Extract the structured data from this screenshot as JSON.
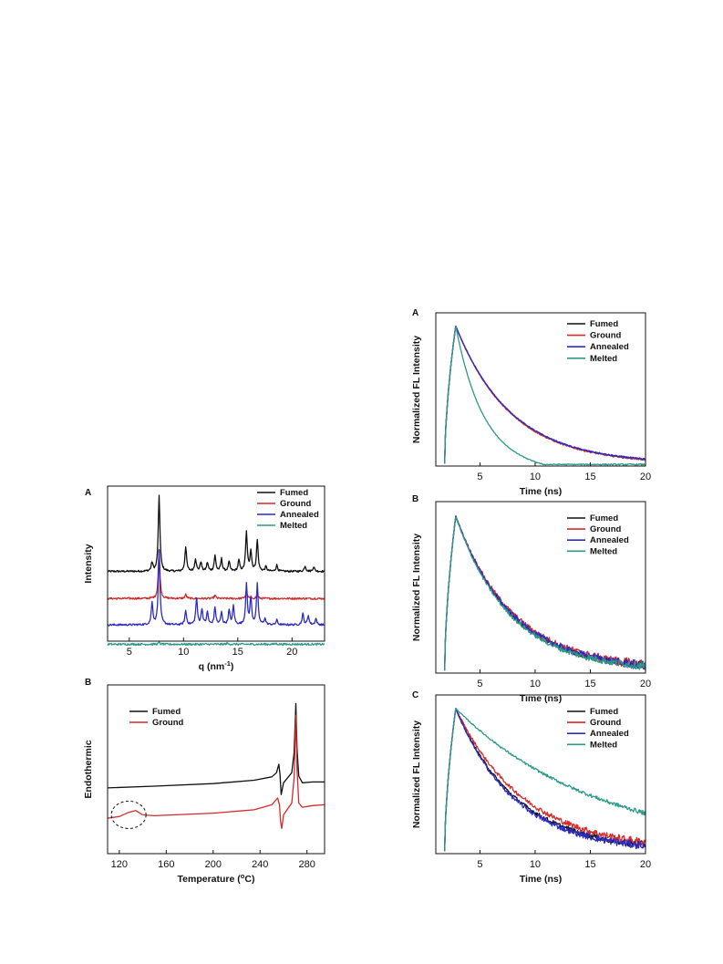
{
  "colors": {
    "Fumed": "#111111",
    "Ground": "#d42a2a",
    "Annealed": "#2b2bc8",
    "Melted": "#2a9a8a"
  },
  "chart_data": [
    {
      "id": "pxrd",
      "panel": "A",
      "type": "line",
      "xlabel": "q (nm",
      "xlabel_sup": "-1",
      "xlabel_end": ")",
      "ylabel": "Intensity",
      "xlim": [
        3,
        23
      ],
      "ylim": [
        0,
        10
      ],
      "xticks": [
        5,
        10,
        15,
        20
      ],
      "legend": "top-right",
      "series": [
        {
          "name": "Fumed",
          "baseline": 4.5,
          "peaks": [
            [
              7.1,
              0.55
            ],
            [
              7.75,
              4.9
            ],
            [
              10.2,
              1.6
            ],
            [
              11.1,
              0.8
            ],
            [
              11.6,
              0.6
            ],
            [
              12.2,
              0.55
            ],
            [
              12.9,
              1.0
            ],
            [
              13.5,
              0.8
            ],
            [
              14.2,
              0.6
            ],
            [
              15.1,
              0.7
            ],
            [
              15.8,
              2.5
            ],
            [
              16.2,
              1.3
            ],
            [
              16.8,
              2.0
            ],
            [
              17.6,
              0.3
            ],
            [
              18.6,
              0.4
            ],
            [
              21.2,
              0.35
            ],
            [
              22.0,
              0.3
            ]
          ]
        },
        {
          "name": "Ground",
          "baseline": 2.75,
          "peaks": [
            [
              7.75,
              3.1
            ],
            [
              10.2,
              0.25
            ],
            [
              12.9,
              0.2
            ],
            [
              15.8,
              0.45
            ],
            [
              16.8,
              0.25
            ]
          ]
        },
        {
          "name": "Annealed",
          "baseline": 1.05,
          "peaks": [
            [
              7.1,
              1.4
            ],
            [
              7.75,
              4.8
            ],
            [
              10.2,
              0.9
            ],
            [
              11.2,
              1.7
            ],
            [
              11.7,
              1.0
            ],
            [
              12.2,
              0.8
            ],
            [
              12.9,
              1.1
            ],
            [
              13.5,
              0.8
            ],
            [
              14.2,
              0.9
            ],
            [
              14.6,
              1.2
            ],
            [
              15.8,
              2.6
            ],
            [
              16.2,
              1.7
            ],
            [
              16.8,
              2.6
            ],
            [
              17.5,
              0.4
            ],
            [
              18.6,
              0.3
            ],
            [
              21.0,
              0.7
            ],
            [
              21.5,
              0.6
            ],
            [
              22.2,
              0.4
            ]
          ]
        },
        {
          "name": "Melted",
          "baseline": -0.2,
          "peaks": [
            [
              7.75,
              0.1
            ],
            [
              14.0,
              0.06
            ],
            [
              18.5,
              0.05
            ]
          ]
        }
      ]
    },
    {
      "id": "dsc",
      "panel": "B",
      "type": "line",
      "xlabel": "Temperature (",
      "xlabel_sup": "o",
      "xlabel_end": "C)",
      "ylabel": "Endothermic",
      "xlim": [
        110,
        295
      ],
      "ylim": [
        0,
        10
      ],
      "xticks": [
        120,
        160,
        200,
        240,
        280
      ],
      "legend": "top-left",
      "series": [
        {
          "name": "Fumed",
          "points": [
            [
              110,
              3.9
            ],
            [
              150,
              4.0
            ],
            [
              200,
              4.15
            ],
            [
              235,
              4.35
            ],
            [
              250,
              4.55
            ],
            [
              254,
              4.8
            ],
            [
              256,
              5.3
            ],
            [
              257,
              4.7
            ],
            [
              258,
              3.5
            ],
            [
              260,
              4.2
            ],
            [
              263,
              4.45
            ],
            [
              267,
              4.8
            ],
            [
              269,
              6.0
            ],
            [
              270.5,
              8.9
            ],
            [
              271.5,
              6.2
            ],
            [
              273,
              4.6
            ],
            [
              276,
              4.2
            ],
            [
              285,
              4.25
            ],
            [
              295,
              4.25
            ]
          ]
        },
        {
          "name": "Ground",
          "points": [
            [
              110,
              2.1
            ],
            [
              120,
              2.2
            ],
            [
              128,
              2.45
            ],
            [
              134,
              2.55
            ],
            [
              140,
              2.3
            ],
            [
              150,
              2.25
            ],
            [
              200,
              2.4
            ],
            [
              235,
              2.6
            ],
            [
              250,
              2.9
            ],
            [
              255,
              3.3
            ],
            [
              256.5,
              2.9
            ],
            [
              257.5,
              1.9
            ],
            [
              258.5,
              1.5
            ],
            [
              260,
              2.3
            ],
            [
              263,
              2.6
            ],
            [
              267,
              3.0
            ],
            [
              269,
              4.5
            ],
            [
              270.5,
              8.2
            ],
            [
              271.5,
              5.0
            ],
            [
              273,
              3.0
            ],
            [
              276,
              2.75
            ],
            [
              285,
              2.85
            ],
            [
              295,
              2.9
            ]
          ]
        }
      ]
    },
    {
      "id": "trpl_a",
      "panel": "A",
      "type": "line",
      "xlabel": "Time (ns)",
      "ylabel": "Normalized FL Intensity",
      "xlim": [
        1,
        20
      ],
      "ylim": [
        0,
        1
      ],
      "xticks": [
        5,
        10,
        15,
        20
      ],
      "legend": "top-right",
      "series": [
        {
          "name": "Fumed",
          "tau": 5.0,
          "noise": 0.004
        },
        {
          "name": "Ground",
          "tau": 4.95,
          "noise": 0.006
        },
        {
          "name": "Annealed",
          "tau": 5.05,
          "noise": 0.005
        },
        {
          "name": "Melted",
          "tau": 2.5,
          "floor": -0.005,
          "noise": 0.004
        }
      ]
    },
    {
      "id": "trpl_b",
      "panel": "B",
      "type": "line",
      "xlabel": "Time (ns)",
      "ylabel": "Normalized FL Intensity",
      "xlim": [
        1,
        20
      ],
      "ylim": [
        0,
        1
      ],
      "xticks": [
        5,
        10,
        15,
        20
      ],
      "legend": "top-right",
      "series": [
        {
          "name": "Fumed",
          "tau": 5.0,
          "noise": 0.018
        },
        {
          "name": "Ground",
          "tau": 5.2,
          "noise": 0.026
        },
        {
          "name": "Annealed",
          "tau": 5.1,
          "noise": 0.022
        },
        {
          "name": "Melted",
          "tau": 4.85,
          "noise": 0.02
        }
      ]
    },
    {
      "id": "trpl_c",
      "panel": "C",
      "type": "line",
      "xlabel": "Time (ns)",
      "ylabel": "Normalized FL Intensity",
      "xlim": [
        1,
        20
      ],
      "ylim": [
        0,
        1
      ],
      "xticks": [
        5,
        10,
        15,
        20
      ],
      "legend": "top-right",
      "series": [
        {
          "name": "Fumed",
          "tau": 5.5,
          "noise": 0.02
        },
        {
          "name": "Ground",
          "tau": 6.2,
          "noise": 0.022
        },
        {
          "name": "Annealed",
          "tau": 5.3,
          "noise": 0.022
        },
        {
          "name": "Melted",
          "tau": 13.0,
          "noise": 0.012
        }
      ]
    }
  ]
}
